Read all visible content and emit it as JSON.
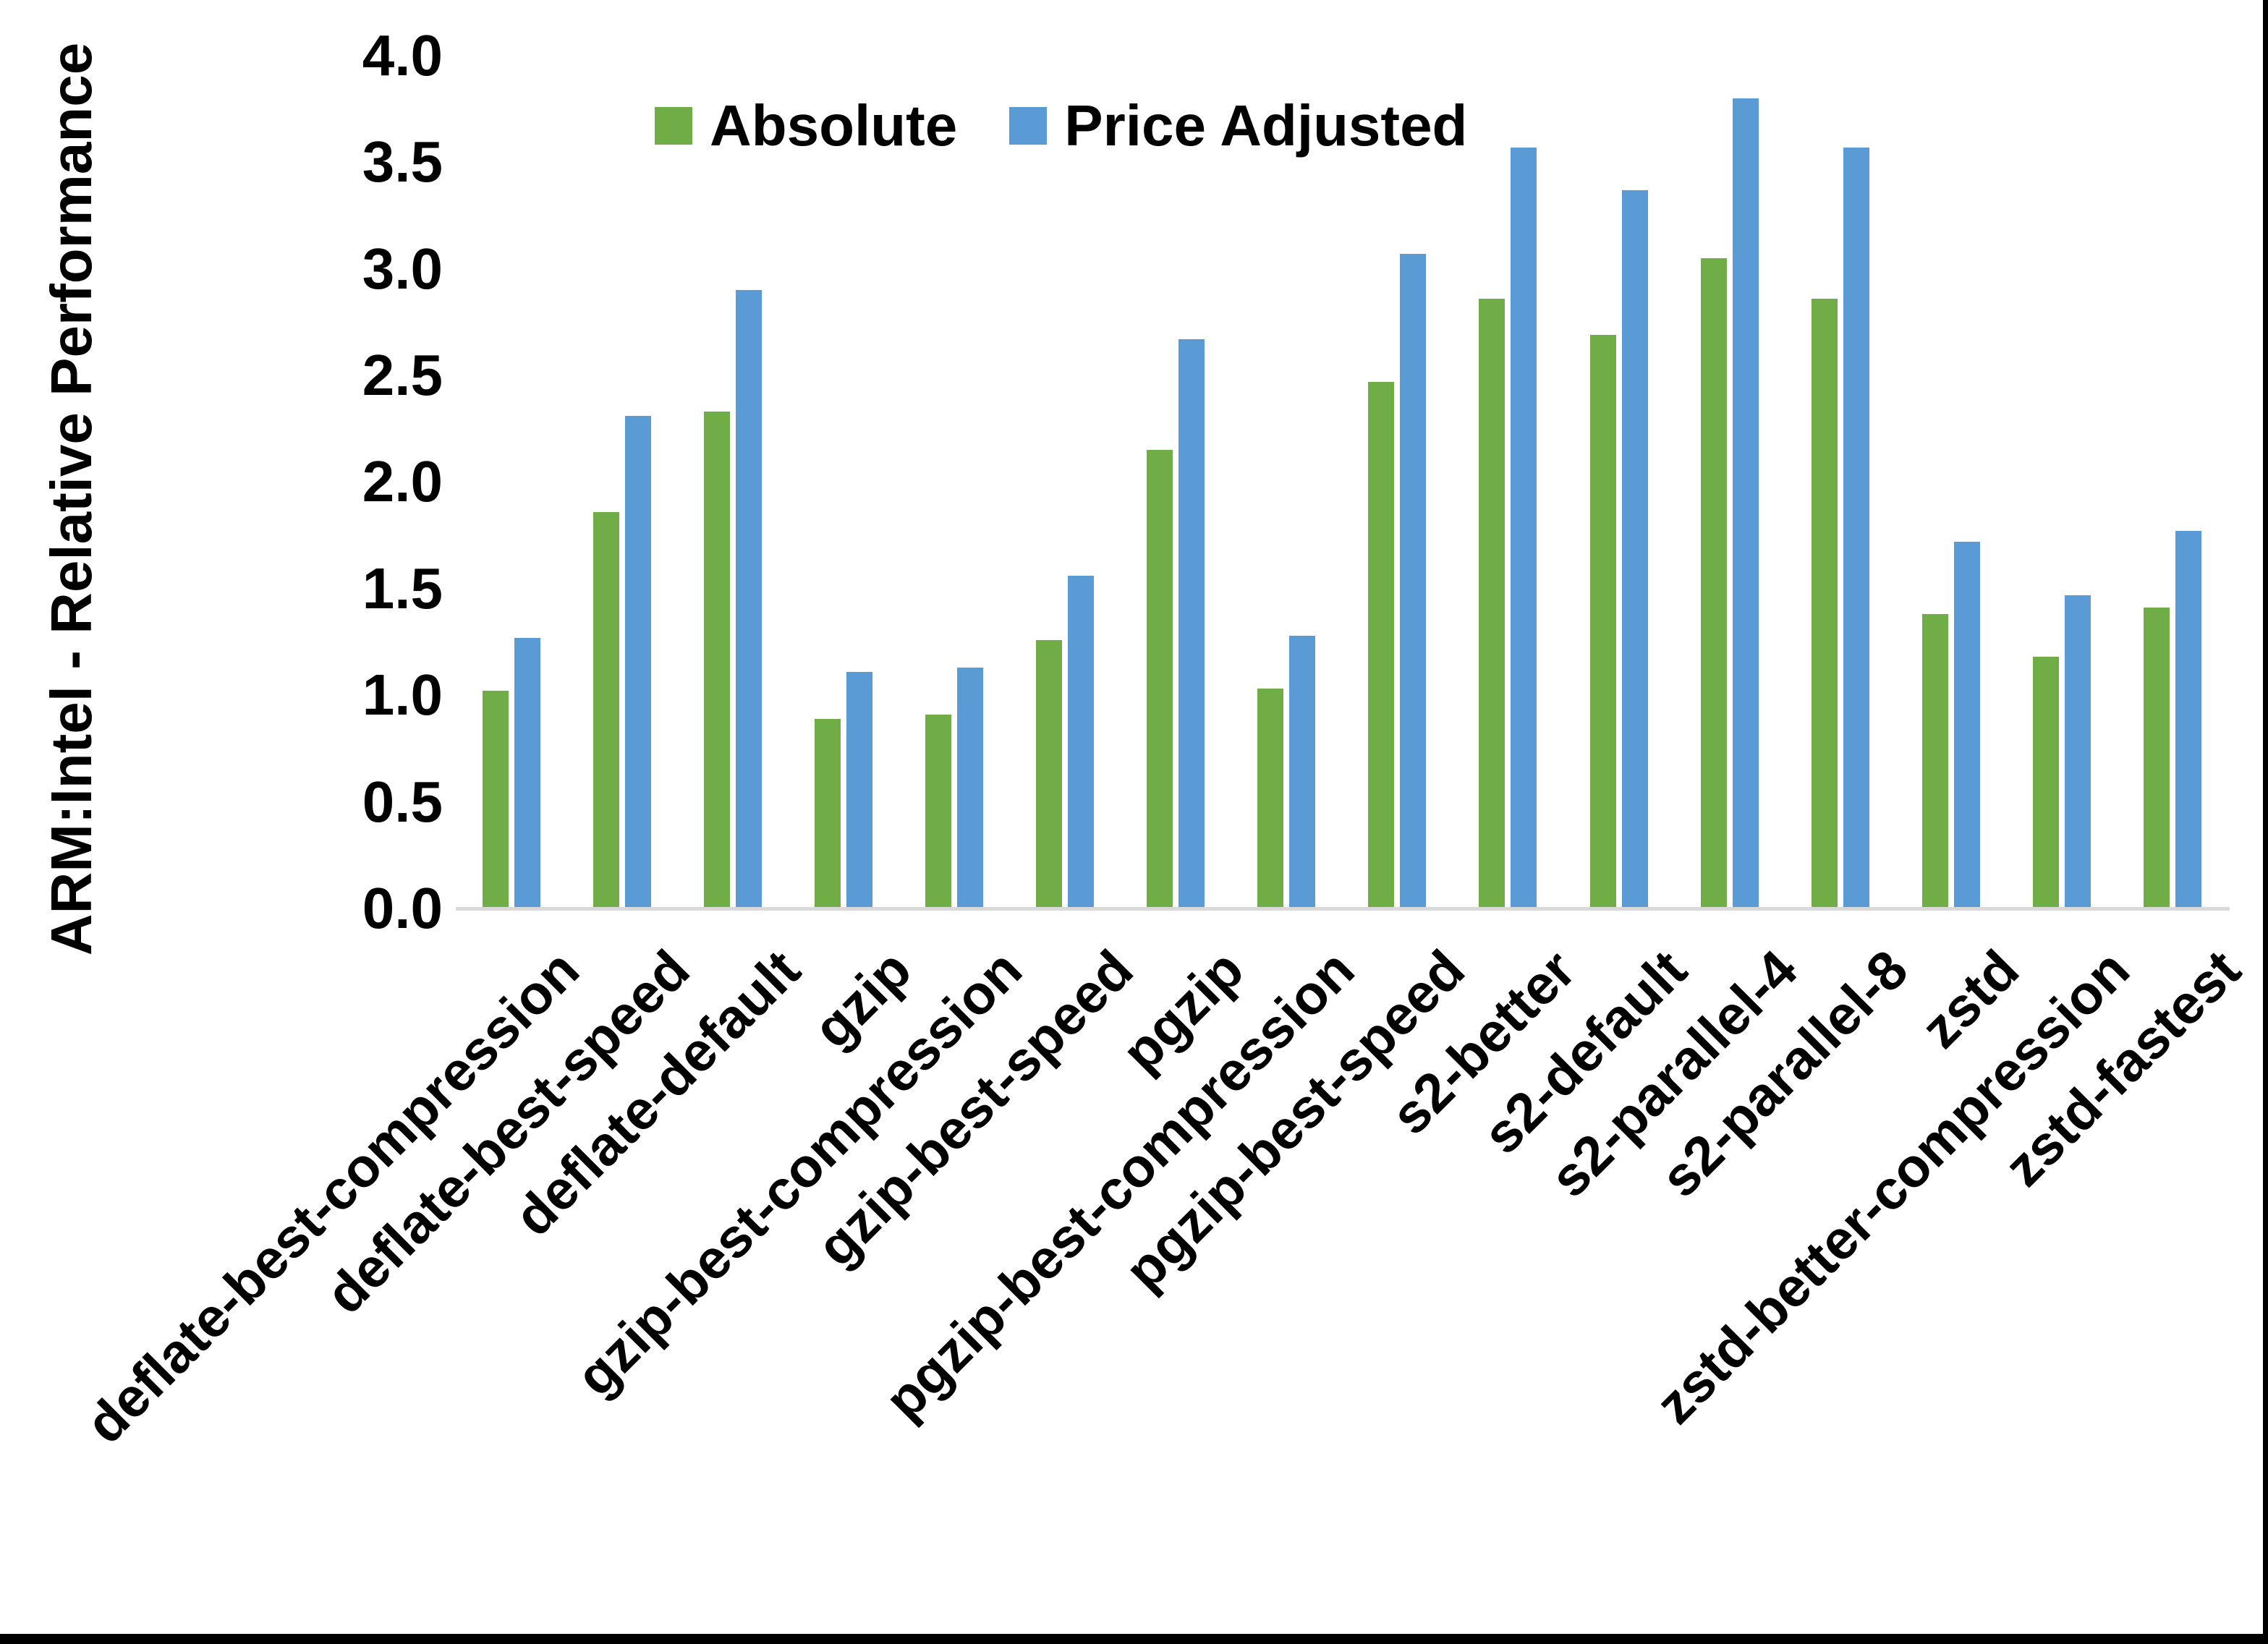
{
  "chart_data": {
    "type": "bar",
    "title": "",
    "xlabel": "",
    "ylabel": "ARM:Intel - Relative Performance",
    "ylim": [
      0.0,
      4.0
    ],
    "ytick_step": 0.5,
    "ytick_labels": [
      "0.0",
      "0.5",
      "1.0",
      "1.5",
      "2.0",
      "2.5",
      "3.0",
      "3.5",
      "4.0"
    ],
    "grid": false,
    "legend_position": "top-center",
    "categories": [
      "deflate-best-compression",
      "deflate-best-speed",
      "deflate-default",
      "gzip",
      "gzip-best-compression",
      "gzip-best-speed",
      "pgzip",
      "pgzip-best-compression",
      "pgzip-best-speed",
      "s2-better",
      "s2-default",
      "s2-parallel-4",
      "s2-parallel-8",
      "zstd",
      "zstd-better-compression",
      "zstd-fastest"
    ],
    "series": [
      {
        "name": "Absolute",
        "color": "#70AD47",
        "values": [
          1.02,
          1.86,
          2.33,
          0.89,
          0.91,
          1.26,
          2.15,
          1.03,
          2.47,
          2.86,
          2.69,
          3.05,
          2.86,
          1.38,
          1.18,
          1.41
        ]
      },
      {
        "name": "Price Adjusted",
        "color": "#5B9BD5",
        "values": [
          1.27,
          2.31,
          2.9,
          1.11,
          1.13,
          1.56,
          2.67,
          1.28,
          3.07,
          3.57,
          3.37,
          3.8,
          3.57,
          1.72,
          1.47,
          1.77
        ]
      }
    ]
  },
  "colors": {
    "background": "#FFFFFF",
    "axis_line": "#D9D9D9",
    "text": "#000000",
    "frame": "#000000"
  }
}
